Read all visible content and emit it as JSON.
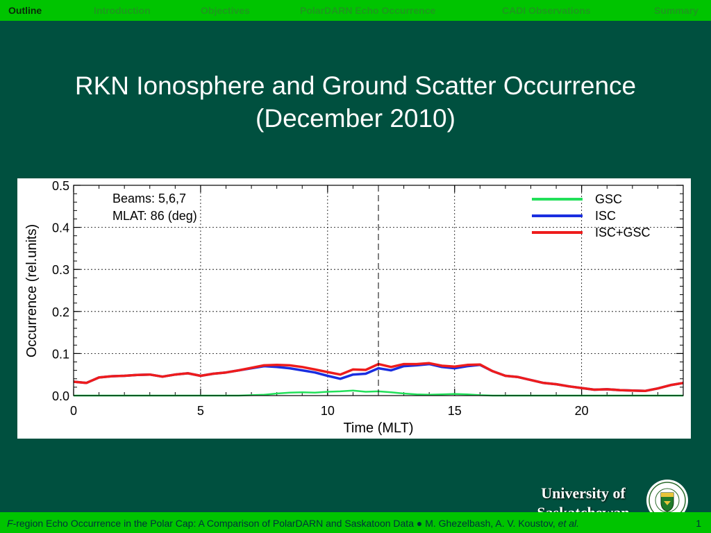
{
  "nav": {
    "items": [
      "Outline",
      "Introduction",
      "Objectives",
      "PolarDARN Echo Occurrence",
      "CADI  Observations",
      "Summary"
    ],
    "active_index": 0
  },
  "title": {
    "line1": "RKN Ionosphere and Ground Scatter Occurrence",
    "line2": "(December 2010)"
  },
  "chart_data": {
    "type": "line",
    "xlabel": "Time (MLT)",
    "ylabel": "Occurrence (rel.units)",
    "xlim": [
      0,
      24
    ],
    "ylim": [
      0,
      0.5
    ],
    "xticks": [
      0,
      5,
      10,
      15,
      20
    ],
    "yticks": [
      0.0,
      0.1,
      0.2,
      0.3,
      0.4,
      0.5
    ],
    "ytick_labels": [
      "0.0",
      "0.1",
      "0.2",
      "0.3",
      "0.4",
      "0.5"
    ],
    "grid": true,
    "vline_x": 12,
    "annotations": [
      "Beams: 5,6,7",
      "MLAT: 86 (deg)"
    ],
    "legend_position": "top-right",
    "x": [
      0,
      0.5,
      1,
      1.5,
      2,
      2.5,
      3,
      3.5,
      4,
      4.5,
      5,
      5.5,
      6,
      6.5,
      7,
      7.5,
      8,
      8.5,
      9,
      9.5,
      10,
      10.5,
      11,
      11.5,
      12,
      12.5,
      13,
      13.5,
      14,
      14.5,
      15,
      15.5,
      16,
      16.5,
      17,
      17.5,
      18,
      18.5,
      19,
      19.5,
      20,
      20.5,
      21,
      21.5,
      22,
      22.5,
      23,
      23.5,
      24
    ],
    "series": [
      {
        "name": "GSC",
        "color": "#22e05a",
        "values": [
          0.0,
          0.0,
          0.0,
          0.0,
          0.0,
          0.0,
          0.0,
          0.0,
          0.0,
          0.0,
          0.0,
          0.0,
          0.0,
          0.0,
          0.001,
          0.002,
          0.005,
          0.007,
          0.008,
          0.007,
          0.009,
          0.01,
          0.012,
          0.009,
          0.01,
          0.008,
          0.005,
          0.003,
          0.002,
          0.003,
          0.004,
          0.003,
          0.001,
          0.0,
          0.0,
          0.0,
          0.0,
          0.0,
          0.0,
          0.0,
          0.0,
          0.0,
          0.0,
          0.0,
          0.0,
          0.0,
          0.0,
          0.0,
          0.0
        ]
      },
      {
        "name": "ISC",
        "color": "#1a2ee0",
        "values": [
          0.033,
          0.03,
          0.043,
          0.046,
          0.047,
          0.049,
          0.05,
          0.045,
          0.05,
          0.053,
          0.047,
          0.052,
          0.055,
          0.06,
          0.065,
          0.07,
          0.068,
          0.065,
          0.06,
          0.055,
          0.047,
          0.04,
          0.05,
          0.052,
          0.065,
          0.06,
          0.07,
          0.072,
          0.075,
          0.068,
          0.065,
          0.07,
          0.073,
          0.058,
          0.047,
          0.044,
          0.037,
          0.03,
          0.027,
          0.022,
          0.018,
          0.014,
          0.015,
          0.013,
          0.012,
          0.011,
          0.017,
          0.025,
          0.03
        ]
      },
      {
        "name": "ISC+GSC",
        "color": "#ee1c1c",
        "values": [
          0.033,
          0.03,
          0.043,
          0.046,
          0.047,
          0.049,
          0.05,
          0.045,
          0.05,
          0.053,
          0.047,
          0.052,
          0.055,
          0.06,
          0.066,
          0.072,
          0.073,
          0.072,
          0.068,
          0.062,
          0.056,
          0.05,
          0.062,
          0.061,
          0.075,
          0.068,
          0.075,
          0.075,
          0.077,
          0.071,
          0.069,
          0.073,
          0.074,
          0.058,
          0.047,
          0.044,
          0.037,
          0.03,
          0.027,
          0.022,
          0.018,
          0.014,
          0.015,
          0.013,
          0.012,
          0.011,
          0.017,
          0.025,
          0.03
        ]
      }
    ]
  },
  "footer": {
    "text_italic_prefix": "F",
    "text_main": "-region Echo Occurrence in the Polar Cap: A Comparison of PolarDARN and Saskatoon Data ● M. Ghezelbash, A. V. Koustov, ",
    "text_italic_suffix": "et al.",
    "page_number": "1"
  },
  "logo": {
    "university_name": "University of Saskatchewan",
    "crest_icon": "university-crest-icon"
  }
}
